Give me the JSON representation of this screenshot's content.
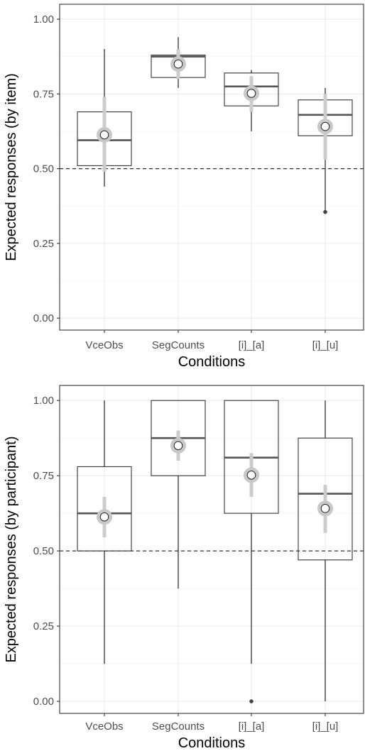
{
  "chart_data": [
    {
      "type": "boxplot",
      "xlabel": "Conditions",
      "ylabel": "Expected responses (by item)",
      "ylim": [
        -0.04,
        1.05
      ],
      "yticks": [
        0.0,
        0.25,
        0.5,
        0.75,
        1.0
      ],
      "ytick_labels": [
        "0.00",
        "0.25",
        "0.50",
        "0.75",
        "1.00"
      ],
      "reference_line": 0.5,
      "grid": true,
      "categories": [
        "VceObs",
        "SegCounts",
        "[i]_[a]",
        "[i]_[u]"
      ],
      "boxes": [
        {
          "min": 0.44,
          "q1": 0.51,
          "median": 0.595,
          "q3": 0.69,
          "max": 0.9,
          "outliers": []
        },
        {
          "min": 0.77,
          "q1": 0.805,
          "median": 0.875,
          "q3": 0.88,
          "max": 0.94,
          "outliers": []
        },
        {
          "min": 0.625,
          "q1": 0.71,
          "median": 0.775,
          "q3": 0.82,
          "max": 0.83,
          "outliers": []
        },
        {
          "min": 0.355,
          "q1": 0.61,
          "median": 0.68,
          "q3": 0.73,
          "max": 0.77,
          "outliers": [
            0.355
          ]
        }
      ],
      "means": [
        {
          "mean": 0.613,
          "lower": 0.49,
          "upper": 0.74
        },
        {
          "mean": 0.85,
          "lower": 0.8,
          "upper": 0.9
        },
        {
          "mean": 0.752,
          "lower": 0.69,
          "upper": 0.81
        },
        {
          "mean": 0.641,
          "lower": 0.53,
          "upper": 0.75
        }
      ]
    },
    {
      "type": "boxplot",
      "xlabel": "Conditions",
      "ylabel": "Expected responses (by participant)",
      "ylim": [
        -0.04,
        1.05
      ],
      "yticks": [
        0.0,
        0.25,
        0.5,
        0.75,
        1.0
      ],
      "ytick_labels": [
        "0.00",
        "0.25",
        "0.50",
        "0.75",
        "1.00"
      ],
      "reference_line": 0.5,
      "grid": true,
      "categories": [
        "VceObs",
        "SegCounts",
        "[i]_[a]",
        "[i]_[u]"
      ],
      "boxes": [
        {
          "min": 0.125,
          "q1": 0.5,
          "median": 0.625,
          "q3": 0.78,
          "max": 1.0,
          "outliers": []
        },
        {
          "min": 0.375,
          "q1": 0.75,
          "median": 0.875,
          "q3": 1.0,
          "max": 1.0,
          "outliers": []
        },
        {
          "min": 0.125,
          "q1": 0.625,
          "median": 0.81,
          "q3": 1.0,
          "max": 1.0,
          "outliers": [
            0.0
          ]
        },
        {
          "min": 0.0,
          "q1": 0.47,
          "median": 0.69,
          "q3": 0.875,
          "max": 1.0,
          "outliers": []
        }
      ],
      "means": [
        {
          "mean": 0.613,
          "lower": 0.545,
          "upper": 0.68
        },
        {
          "mean": 0.85,
          "lower": 0.8,
          "upper": 0.9
        },
        {
          "mean": 0.752,
          "lower": 0.68,
          "upper": 0.825
        },
        {
          "mean": 0.641,
          "lower": 0.56,
          "upper": 0.72
        }
      ]
    }
  ],
  "colors": {
    "box_line": "#333333",
    "median_line": "#555555",
    "whisker": "#333333",
    "outlier": "#444444",
    "mean_halo": "#c8c8c8",
    "mean_interval": "#cccccc",
    "mean_point_fill": "#ffffff",
    "grid_major": "#ebebeb",
    "grid_minor": "#f5f5f5",
    "panel_border": "#333333",
    "reference_line": "#333333"
  }
}
